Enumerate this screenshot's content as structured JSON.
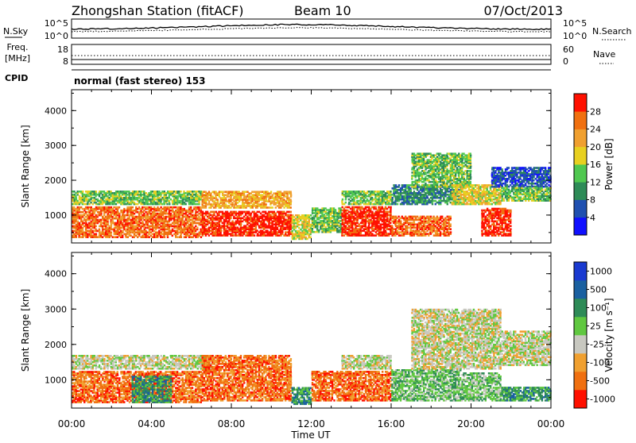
{
  "header": {
    "title": "Zhongshan Station (fitACF)",
    "beam": "Beam 10",
    "date": "07/Oct/2013"
  },
  "summary": {
    "nsky_label": "N.Sky",
    "nsearch_label": "N.Search",
    "nsky_ticks": [
      "10^5",
      "10^0"
    ],
    "nsearch_ticks": [
      "10^5",
      "10^0"
    ],
    "freq_label_line1": "Freq.",
    "freq_label_line2": "[MHz]",
    "freq_ticks": [
      "18",
      "8"
    ],
    "nave_label": "Nave",
    "nave_ticks": [
      "60",
      "0"
    ],
    "cpid_label": "CPID",
    "cpid_text": "normal (fast stereo) 153"
  },
  "chart_data": [
    {
      "type": "heatmap",
      "name": "power",
      "ylabel": "Slant Range [km]",
      "ylim": [
        200,
        4600
      ],
      "yticks": [
        1000,
        2000,
        3000,
        4000
      ],
      "xlim": [
        0,
        24
      ],
      "xticks": [
        "00:00",
        "04:00",
        "08:00",
        "12:00",
        "16:00",
        "20:00",
        "00:00"
      ],
      "colorbar": {
        "label": "Power [dB]",
        "ticks": [
          "4",
          "8",
          "12",
          "16",
          "20",
          "24",
          "28"
        ],
        "colors": [
          "#1010ff",
          "#2050b0",
          "#2e8b57",
          "#50c850",
          "#e8d020",
          "#f0a030",
          "#f07010",
          "#ff1000"
        ]
      },
      "bands": [
        {
          "t": [
            0.0,
            6.5
          ],
          "r": [
            350,
            1250
          ],
          "c": 6
        },
        {
          "t": [
            0.0,
            6.5
          ],
          "r": [
            1300,
            1700
          ],
          "c": 3
        },
        {
          "t": [
            6.5,
            11.0
          ],
          "r": [
            400,
            1100
          ],
          "c": 7
        },
        {
          "t": [
            6.5,
            11.0
          ],
          "r": [
            1200,
            1700
          ],
          "c": 5
        },
        {
          "t": [
            11.0,
            12.0
          ],
          "r": [
            300,
            1000
          ],
          "c": 4
        },
        {
          "t": [
            12.0,
            13.5
          ],
          "r": [
            500,
            1200
          ],
          "c": 3
        },
        {
          "t": [
            13.5,
            16.0
          ],
          "r": [
            400,
            1250
          ],
          "c": 7
        },
        {
          "t": [
            13.5,
            16.0
          ],
          "r": [
            1300,
            1700
          ],
          "c": 3
        },
        {
          "t": [
            16.0,
            19.0
          ],
          "r": [
            400,
            1000
          ],
          "c": 6
        },
        {
          "t": [
            16.0,
            19.5
          ],
          "r": [
            1300,
            1900
          ],
          "c": 2
        },
        {
          "t": [
            17.0,
            20.0
          ],
          "r": [
            1800,
            2800
          ],
          "c": 3
        },
        {
          "t": [
            19.0,
            21.5
          ],
          "r": [
            1300,
            1900
          ],
          "c": 4
        },
        {
          "t": [
            20.5,
            22.0
          ],
          "r": [
            400,
            1200
          ],
          "c": 7
        },
        {
          "t": [
            21.0,
            24.0
          ],
          "r": [
            1800,
            2400
          ],
          "c": 1
        },
        {
          "t": [
            21.5,
            24.0
          ],
          "r": [
            1400,
            1800
          ],
          "c": 3
        }
      ]
    },
    {
      "type": "heatmap",
      "name": "velocity",
      "ylabel": "Slant Range [km]",
      "ylim": [
        200,
        4600
      ],
      "yticks": [
        1000,
        2000,
        3000,
        4000
      ],
      "xlim": [
        0,
        24
      ],
      "xticks": [
        "00:00",
        "04:00",
        "08:00",
        "12:00",
        "16:00",
        "20:00",
        "00:00"
      ],
      "xlabel": "Time UT",
      "colorbar": {
        "label": "Velocity [m s⁻¹]",
        "ticks": [
          "1000",
          "500",
          "100",
          "25",
          "-25",
          "-100",
          "-500",
          "-1000"
        ],
        "colors": [
          "#1a3ad0",
          "#1a60a0",
          "#2e8b57",
          "#60c840",
          "#c8c8c0",
          "#f0a030",
          "#f07010",
          "#ff1000"
        ]
      },
      "bands": [
        {
          "t": [
            0.0,
            6.5
          ],
          "r": [
            350,
            1250
          ],
          "c": 6
        },
        {
          "t": [
            0.0,
            7.0
          ],
          "r": [
            1300,
            1700
          ],
          "c": 4
        },
        {
          "t": [
            3.0,
            5.0
          ],
          "r": [
            350,
            1100
          ],
          "c": 2
        },
        {
          "t": [
            6.5,
            11.0
          ],
          "r": [
            400,
            1700
          ],
          "c": 6
        },
        {
          "t": [
            11.0,
            12.0
          ],
          "r": [
            300,
            800
          ],
          "c": 2
        },
        {
          "t": [
            12.0,
            16.0
          ],
          "r": [
            400,
            1250
          ],
          "c": 6
        },
        {
          "t": [
            13.5,
            16.0
          ],
          "r": [
            1300,
            1700
          ],
          "c": 4
        },
        {
          "t": [
            16.0,
            19.5
          ],
          "r": [
            400,
            1300
          ],
          "c": 3
        },
        {
          "t": [
            17.0,
            21.5
          ],
          "r": [
            1300,
            3000
          ],
          "c": 4
        },
        {
          "t": [
            19.5,
            21.5
          ],
          "r": [
            400,
            1200
          ],
          "c": 3
        },
        {
          "t": [
            21.5,
            24.0
          ],
          "r": [
            400,
            800
          ],
          "c": 2
        },
        {
          "t": [
            21.5,
            24.0
          ],
          "r": [
            1400,
            2400
          ],
          "c": 4
        }
      ]
    }
  ]
}
